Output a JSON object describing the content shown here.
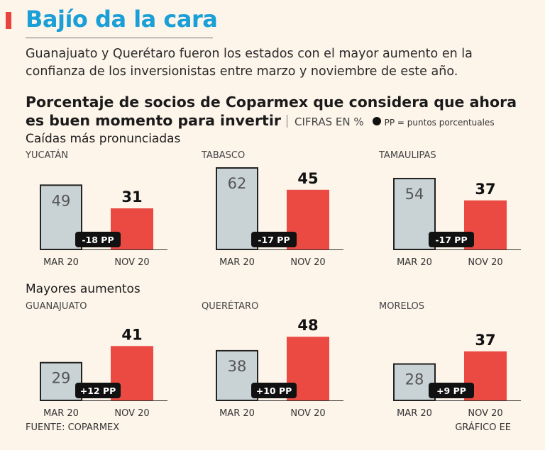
{
  "title": "Bajío da la cara",
  "subtitle": "Guanajuato y Querétaro fueron los estados con el mayor aumento en la confianza de los inversionistas entre marzo y noviembre de este año.",
  "headline": "Porcentaje de socios de Coparmex que considera que ahora es buen momento para invertir",
  "unit_label": "CIFRAS EN %",
  "legend_text": "PP = puntos porcentuales",
  "sections": {
    "drops": "Caídas más pronunciadas",
    "gains": "Mayores aumentos"
  },
  "footer": {
    "source": "FUENTE: COPARMEX",
    "credit": "GRÁFICO EE"
  },
  "colors": {
    "accent": "#e8433c",
    "title": "#1a9fd6",
    "bar_mar": "#c9d2d4",
    "bar_nov": "#ea4a42",
    "badge": "#111111",
    "background": "#fdf4ea"
  },
  "chart_data": {
    "type": "bar",
    "categories": [
      "MAR 20",
      "NOV 20"
    ],
    "ylim": [
      0,
      62
    ],
    "panels": [
      {
        "state": "YUCATÁN",
        "values": [
          49,
          31
        ],
        "change": "-18 PP",
        "group": "drops"
      },
      {
        "state": "TABASCO",
        "values": [
          62,
          45
        ],
        "change": "-17 PP",
        "group": "drops"
      },
      {
        "state": "TAMAULIPAS",
        "values": [
          54,
          37
        ],
        "change": "-17 PP",
        "group": "drops"
      },
      {
        "state": "GUANAJUATO",
        "values": [
          29,
          41
        ],
        "change": "+12 PP",
        "group": "gains"
      },
      {
        "state": "QUERÉTARO",
        "values": [
          38,
          48
        ],
        "change": "+10 PP",
        "group": "gains"
      },
      {
        "state": "MORELOS",
        "values": [
          28,
          37
        ],
        "change": "+9 PP",
        "group": "gains"
      }
    ]
  }
}
